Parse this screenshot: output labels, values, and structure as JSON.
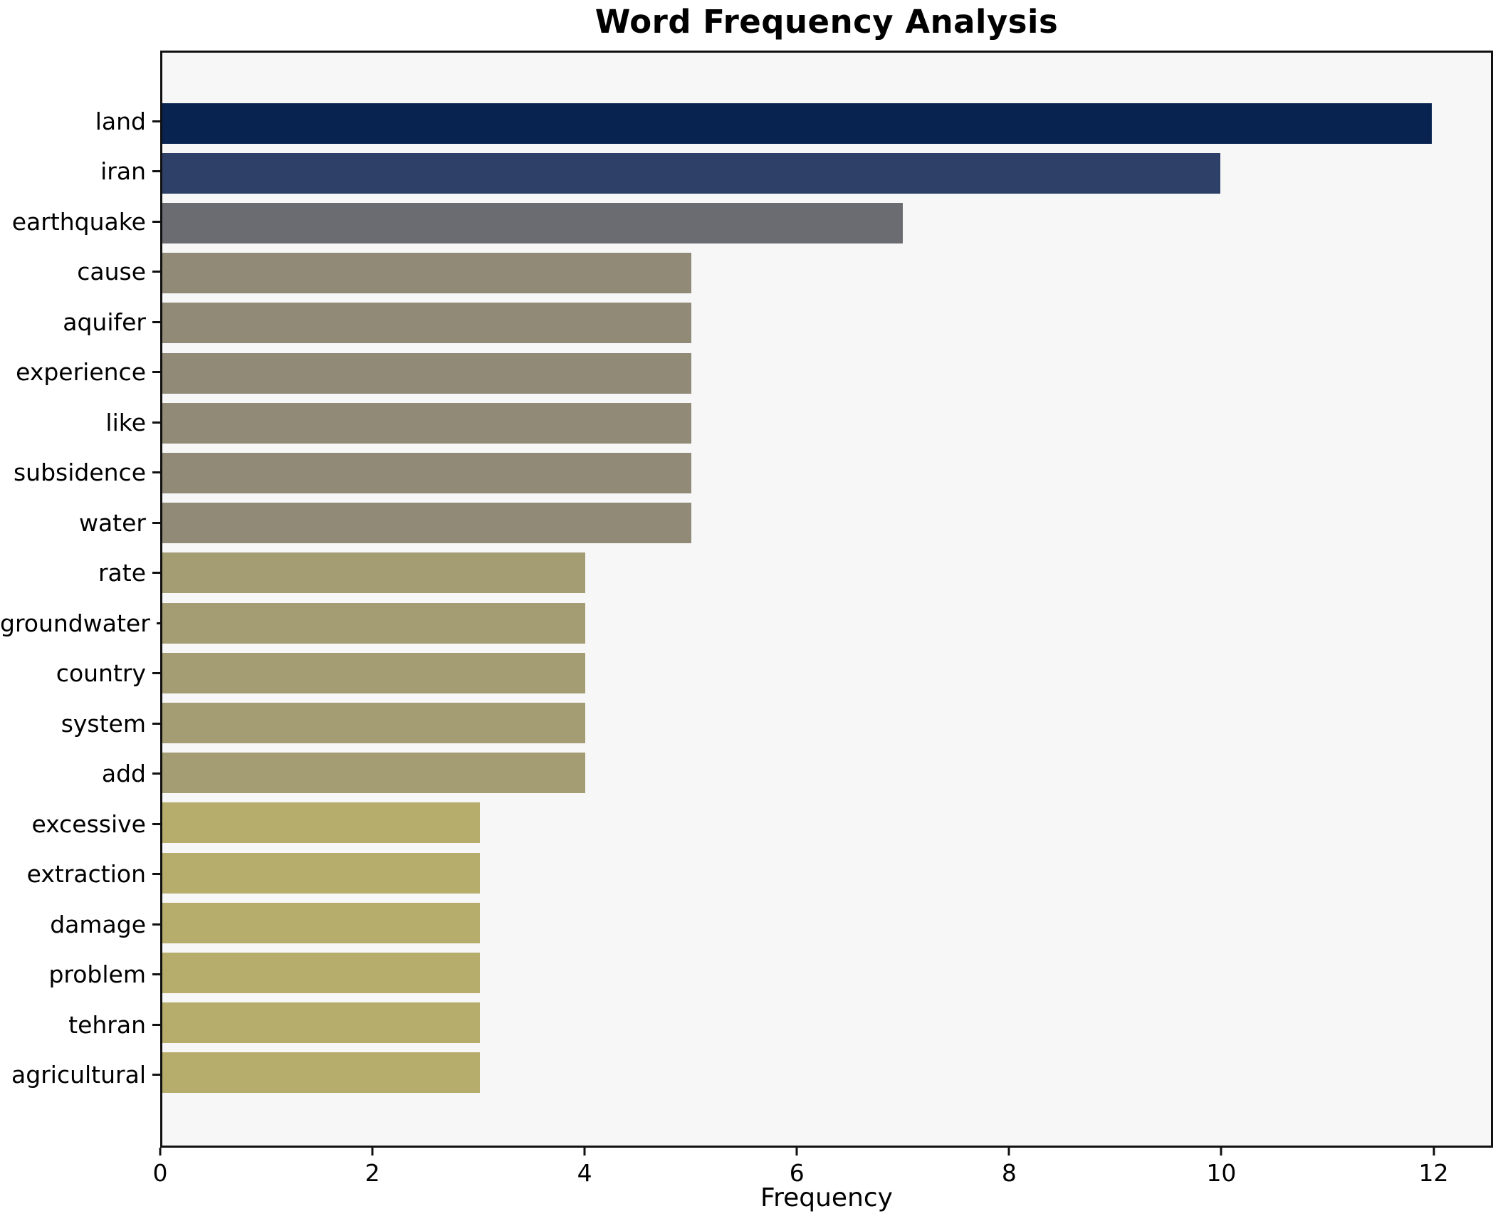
{
  "title": "Word Frequency Analysis",
  "chart_data": {
    "type": "bar",
    "orientation": "horizontal",
    "title": "Word Frequency Analysis",
    "xlabel": "Frequency",
    "ylabel": "",
    "categories": [
      "land",
      "iran",
      "earthquake",
      "cause",
      "aquifer",
      "experience",
      "like",
      "subsidence",
      "water",
      "rate",
      "groundwater",
      "country",
      "system",
      "add",
      "excessive",
      "extraction",
      "damage",
      "problem",
      "tehran",
      "agricultural"
    ],
    "values": [
      12,
      10,
      7,
      5,
      5,
      5,
      5,
      5,
      5,
      4,
      4,
      4,
      4,
      4,
      3,
      3,
      3,
      3,
      3,
      3
    ],
    "bar_colors": [
      "#082350",
      "#2e4067",
      "#6b6c71",
      "#908a76",
      "#908a76",
      "#908a76",
      "#908a76",
      "#908a76",
      "#908a76",
      "#a49c72",
      "#a49c72",
      "#a49c72",
      "#a49c72",
      "#a49c72",
      "#b6ac6b",
      "#b6ac6b",
      "#b6ac6b",
      "#b6ac6b",
      "#b6ac6b",
      "#b6ac6b"
    ],
    "xlim": [
      0,
      12.56
    ],
    "x_ticks": [
      0,
      2,
      4,
      6,
      8,
      10,
      12
    ],
    "grid": false,
    "legend": false,
    "plot_bg": "#f7f7f8",
    "fig_bg": "#ffffff",
    "spine_color": "#111111"
  }
}
